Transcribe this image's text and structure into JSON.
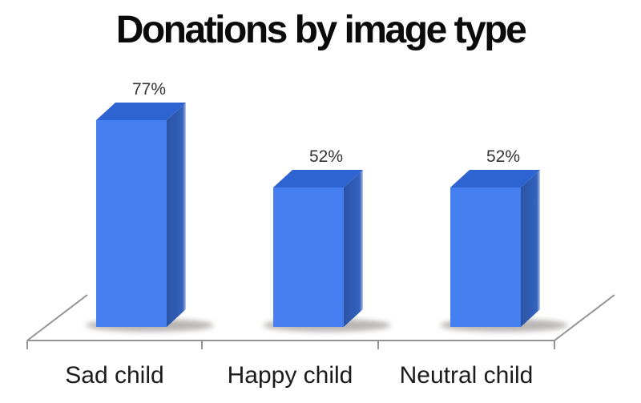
{
  "chart_data": {
    "type": "bar",
    "projection": "3d",
    "title": "Donations by image type",
    "categories": [
      "Sad child",
      "Happy child",
      "Neutral child"
    ],
    "values": [
      77,
      52,
      52
    ],
    "value_labels": [
      "77%",
      "52%",
      "52%"
    ],
    "xlabel": "",
    "ylabel": "",
    "ylim": [
      0,
      80
    ],
    "y_axis_visible": false,
    "grid": false,
    "legend": "none",
    "colors": {
      "bar_front": "#4680F0",
      "bar_top": "#2E63D2",
      "bar_side_dark": "#2A53A4",
      "bar_side_light": "#3363BE",
      "bar_side_edge": "#BFCBE9",
      "shadow": "rgba(125,120,115,0.55)",
      "axis": "#949494",
      "value_text": "#333333",
      "category_text": "#1b1b1b",
      "title_text": "#0b0b0b"
    }
  }
}
